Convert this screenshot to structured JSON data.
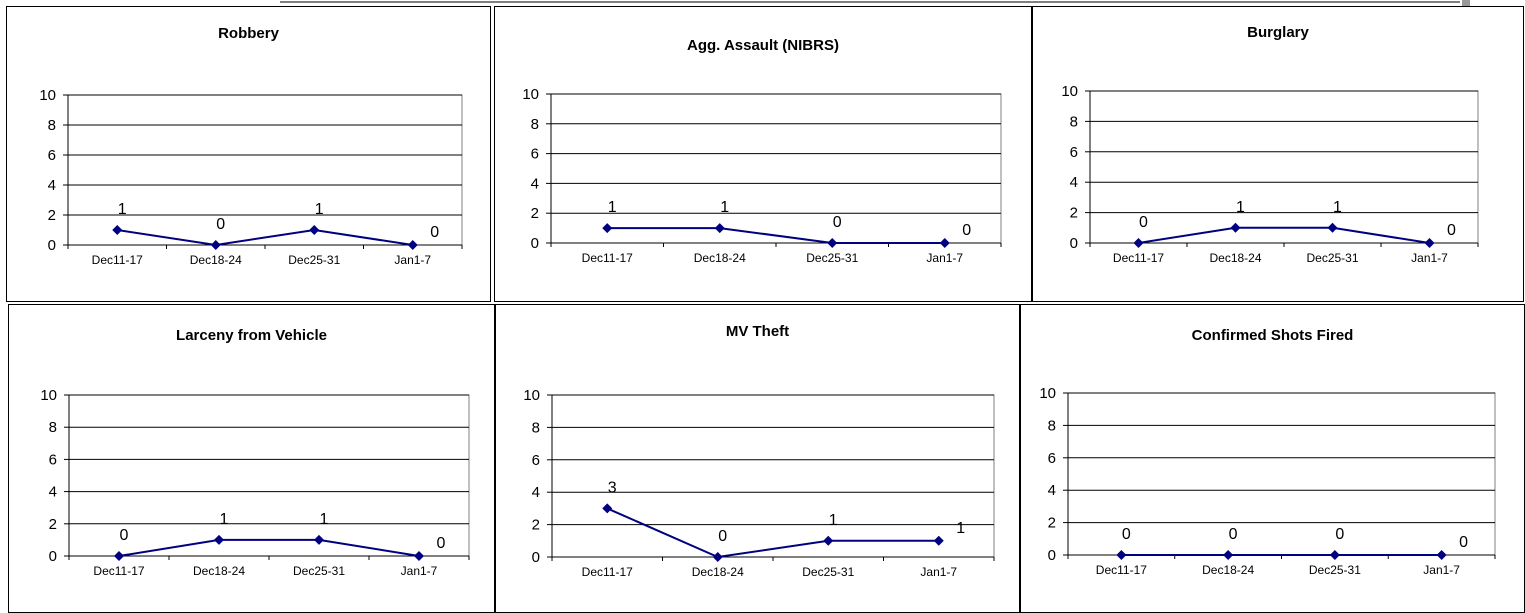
{
  "colors": {
    "line": "#000080",
    "marker": "#000080",
    "grid": "#000000",
    "text": "#000000"
  },
  "chart_data": [
    {
      "type": "line",
      "title": "Robbery",
      "categories": [
        "Dec11-17",
        "Dec18-24",
        "Dec25-31",
        "Jan1-7"
      ],
      "values": [
        1,
        0,
        1,
        0
      ],
      "ylim": [
        0,
        10
      ],
      "yticks": [
        "0",
        "2",
        "4",
        "6",
        "8",
        "10"
      ],
      "grid": true,
      "xlabel": "",
      "ylabel": ""
    },
    {
      "type": "line",
      "title": "Agg. Assault (NIBRS)",
      "categories": [
        "Dec11-17",
        "Dec18-24",
        "Dec25-31",
        "Jan1-7"
      ],
      "values": [
        1,
        1,
        0,
        0
      ],
      "ylim": [
        0,
        10
      ],
      "yticks": [
        "0",
        "2",
        "4",
        "6",
        "8",
        "10"
      ],
      "grid": true,
      "xlabel": "",
      "ylabel": ""
    },
    {
      "type": "line",
      "title": "Burglary",
      "categories": [
        "Dec11-17",
        "Dec18-24",
        "Dec25-31",
        "Jan1-7"
      ],
      "values": [
        0,
        1,
        1,
        0
      ],
      "ylim": [
        0,
        10
      ],
      "yticks": [
        "0",
        "2",
        "4",
        "6",
        "8",
        "10"
      ],
      "grid": true,
      "xlabel": "",
      "ylabel": ""
    },
    {
      "type": "line",
      "title": "Larceny from Vehicle",
      "categories": [
        "Dec11-17",
        "Dec18-24",
        "Dec25-31",
        "Jan1-7"
      ],
      "values": [
        0,
        1,
        1,
        0
      ],
      "ylim": [
        0,
        10
      ],
      "yticks": [
        "0",
        "2",
        "4",
        "6",
        "8",
        "10"
      ],
      "grid": true,
      "xlabel": "",
      "ylabel": ""
    },
    {
      "type": "line",
      "title": "MV Theft",
      "categories": [
        "Dec11-17",
        "Dec18-24",
        "Dec25-31",
        "Jan1-7"
      ],
      "values": [
        3,
        0,
        1,
        1
      ],
      "ylim": [
        0,
        10
      ],
      "yticks": [
        "0",
        "2",
        "4",
        "6",
        "8",
        "10"
      ],
      "grid": true,
      "xlabel": "",
      "ylabel": ""
    },
    {
      "type": "line",
      "title": "Confirmed Shots Fired",
      "categories": [
        "Dec11-17",
        "Dec18-24",
        "Dec25-31",
        "Jan1-7"
      ],
      "values": [
        0,
        0,
        0,
        0
      ],
      "ylim": [
        0,
        10
      ],
      "yticks": [
        "0",
        "2",
        "4",
        "6",
        "8",
        "10"
      ],
      "grid": true,
      "xlabel": "",
      "ylabel": ""
    }
  ]
}
